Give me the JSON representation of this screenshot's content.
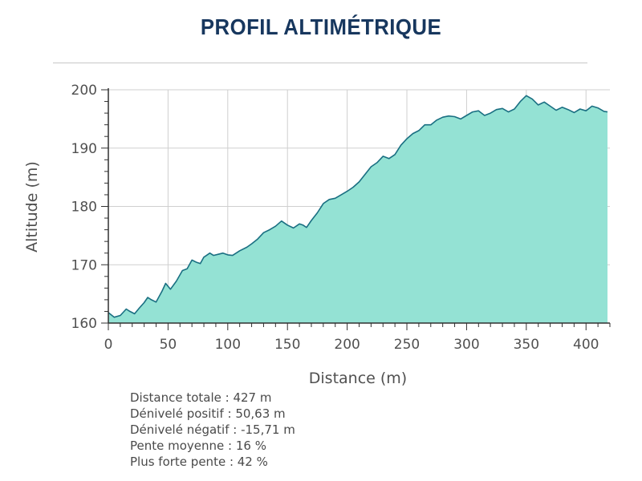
{
  "header": {
    "title": "PROFIL ALTIMÉTRIQUE"
  },
  "chart_data": {
    "type": "area",
    "title": "PROFIL ALTIMÉTRIQUE",
    "xlabel": "Distance (m)",
    "ylabel": "Altitude (m)",
    "xlim": [
      0,
      420
    ],
    "ylim": [
      160,
      200
    ],
    "xticks": [
      0,
      50,
      100,
      150,
      200,
      250,
      300,
      350,
      400
    ],
    "yticks": [
      160,
      170,
      180,
      190,
      200
    ],
    "grid": true,
    "colors": {
      "fill": "#94e2d4",
      "line": "#1a6f82",
      "grid": "#cfcfcf",
      "axis": "#303030"
    },
    "series": [
      {
        "x": [
          0,
          5,
          10,
          15,
          18,
          22,
          26,
          30,
          33,
          36,
          40,
          45,
          48,
          52,
          57,
          62,
          66,
          70,
          74,
          77,
          80,
          85,
          88,
          92,
          96,
          100,
          104,
          110,
          116,
          120,
          125,
          130,
          135,
          140,
          145,
          150,
          155,
          160,
          163,
          166,
          170,
          175,
          180,
          185,
          190,
          195,
          200,
          205,
          210,
          215,
          220,
          225,
          230,
          235,
          240,
          245,
          250,
          255,
          260,
          265,
          270,
          275,
          280,
          285,
          290,
          295,
          300,
          305,
          310,
          315,
          320,
          325,
          330,
          335,
          340,
          345,
          350,
          355,
          360,
          365,
          370,
          375,
          380,
          385,
          390,
          395,
          400,
          405,
          410,
          415,
          418
        ],
        "y": [
          161.8,
          161.0,
          161.3,
          162.4,
          162.0,
          161.6,
          162.6,
          163.5,
          164.4,
          164.0,
          163.6,
          165.5,
          166.8,
          165.8,
          167.2,
          169.0,
          169.3,
          170.8,
          170.4,
          170.2,
          171.3,
          172.0,
          171.6,
          171.8,
          172.0,
          171.7,
          171.6,
          172.4,
          173.0,
          173.6,
          174.4,
          175.5,
          176.0,
          176.6,
          177.5,
          176.8,
          176.3,
          177.0,
          176.8,
          176.4,
          177.6,
          178.9,
          180.5,
          181.2,
          181.4,
          182.0,
          182.6,
          183.3,
          184.2,
          185.5,
          186.8,
          187.5,
          188.6,
          188.2,
          188.9,
          190.5,
          191.6,
          192.5,
          193.0,
          194.0,
          194.0,
          194.8,
          195.3,
          195.5,
          195.4,
          195.0,
          195.6,
          196.2,
          196.4,
          195.6,
          196.0,
          196.6,
          196.8,
          196.2,
          196.7,
          198.0,
          199.0,
          198.4,
          197.4,
          197.9,
          197.2,
          196.5,
          197.0,
          196.6,
          196.1,
          196.7,
          196.4,
          197.2,
          196.9,
          196.3,
          196.2
        ]
      }
    ]
  },
  "stats": {
    "distance": "Distance totale : 427 m",
    "positive": "Dénivelé positif : 50,63 m",
    "negative": "Dénivelé négatif : -15,71 m",
    "avg_slope": "Pente moyenne : 16 %",
    "max_slope": "Plus forte pente : 42 %"
  }
}
